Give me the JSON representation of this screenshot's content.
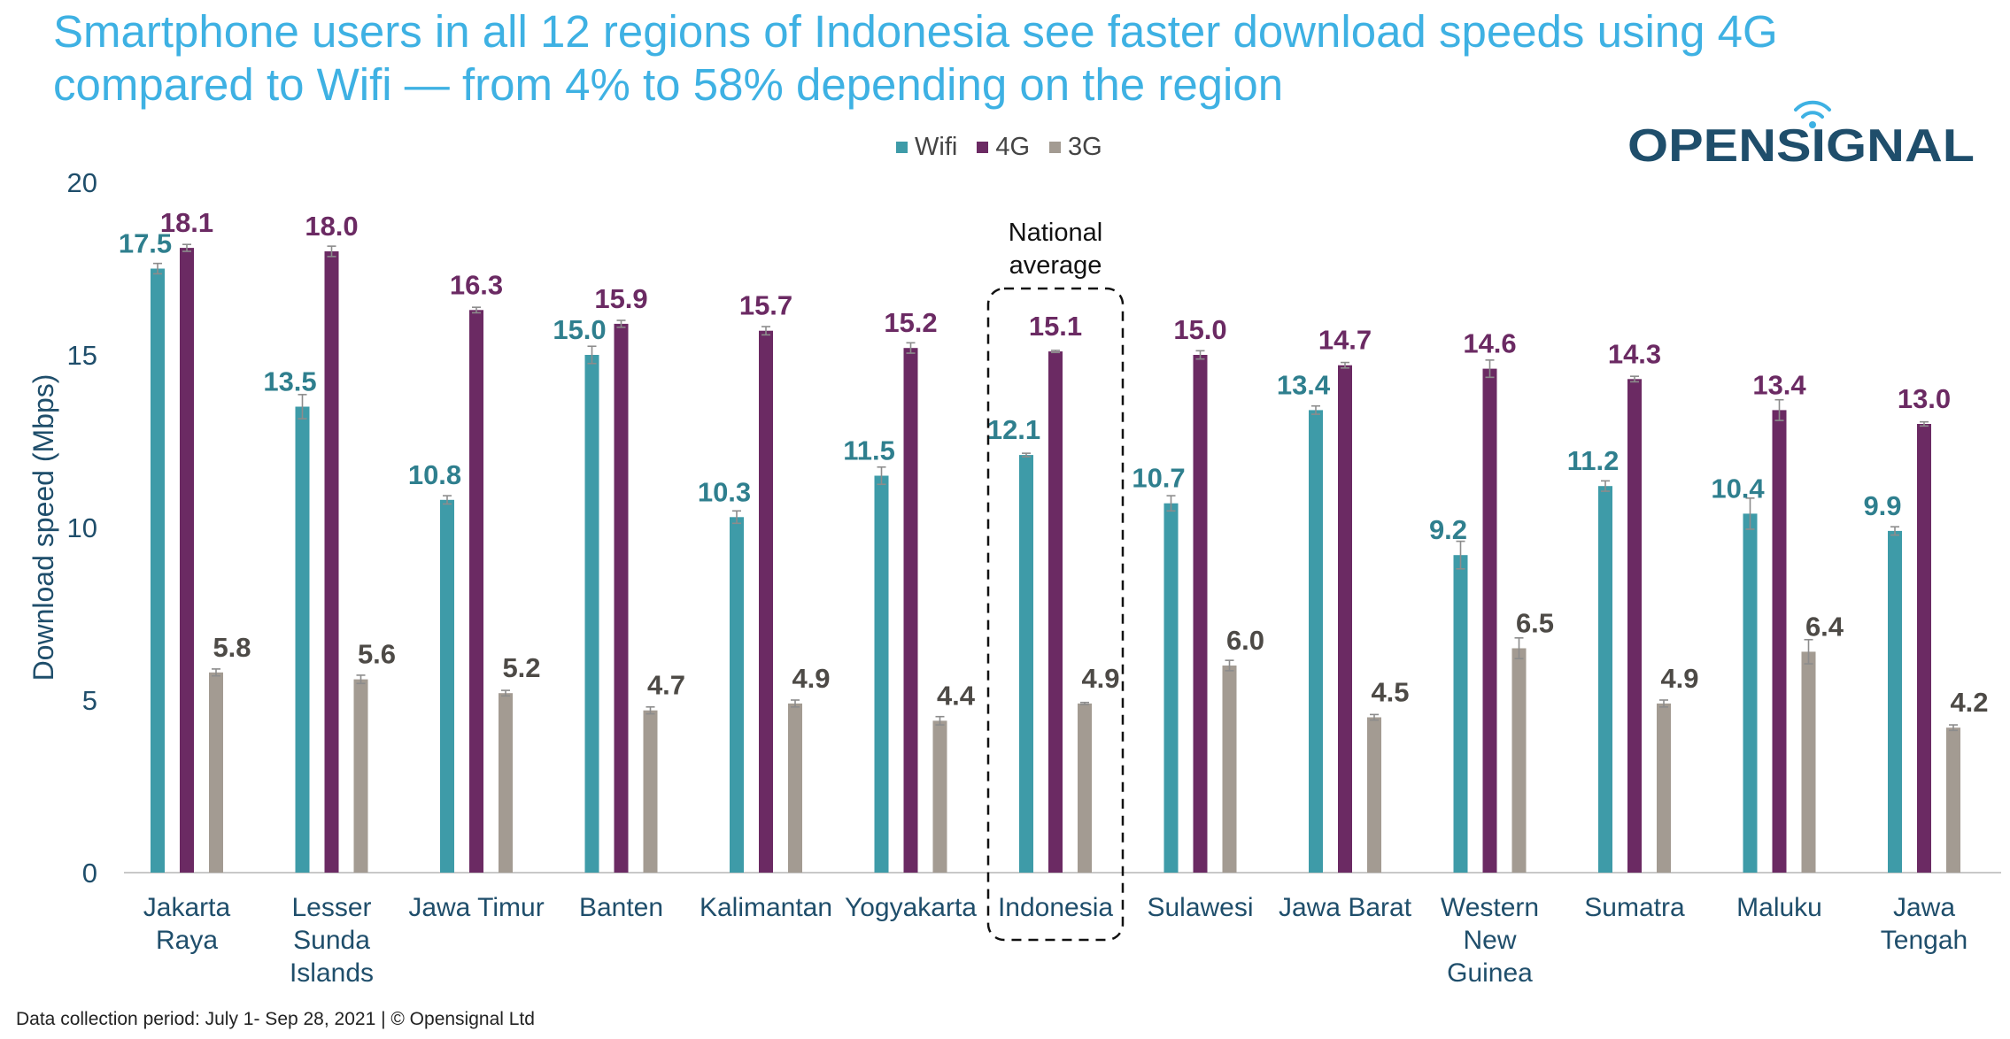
{
  "header": {
    "title": "Smartphone users in all 12 regions of Indonesia see faster download speeds using 4G compared to Wifi — from 4% to 58% depending on the region",
    "brand": "OPENSIGNAL"
  },
  "footer": {
    "note": "Data collection period: July 1- Sep 28, 2021 | © Opensignal Ltd"
  },
  "chart_data": {
    "type": "bar",
    "title": "Smartphone users in all 12 regions of Indonesia see faster download speeds using 4G compared to Wifi — from 4% to 58% depending on the region",
    "ylabel": "Download speed (Mbps)",
    "xlabel": "",
    "ylim": [
      0,
      20
    ],
    "yticks": [
      0,
      5,
      10,
      15,
      20
    ],
    "grid": false,
    "legend_position": "top",
    "categories": [
      "Jakarta Raya",
      "Lesser Sunda Islands",
      "Jawa Timur",
      "Banten",
      "Kalimantan",
      "Yogyakarta",
      "Indonesia",
      "Sulawesi",
      "Jawa Barat",
      "Western New Guinea",
      "Sumatra",
      "Maluku",
      "Jawa Tengah"
    ],
    "category_lines": [
      [
        "Jakarta",
        "Raya"
      ],
      [
        "Lesser",
        "Sunda",
        "Islands"
      ],
      [
        "Jawa Timur"
      ],
      [
        "Banten"
      ],
      [
        "Kalimantan"
      ],
      [
        "Yogyakarta"
      ],
      [
        "Indonesia"
      ],
      [
        "Sulawesi"
      ],
      [
        "Jawa Barat"
      ],
      [
        "Western",
        "New",
        "Guinea"
      ],
      [
        "Sumatra"
      ],
      [
        "Maluku"
      ],
      [
        "Jawa",
        "Tengah"
      ]
    ],
    "series": [
      {
        "name": "Wifi",
        "color": "#3e9ba8",
        "label_color": "#2f7f8e",
        "values": [
          17.5,
          13.5,
          10.8,
          15.0,
          10.3,
          11.5,
          12.1,
          10.7,
          13.4,
          9.2,
          11.2,
          10.4,
          9.9
        ],
        "labels": [
          "17.5",
          "13.5",
          "10.8",
          "15.0",
          "10.3",
          "11.5",
          "12.1",
          "10.7",
          "13.4",
          "9.2",
          "11.2",
          "10.4",
          "9.9"
        ]
      },
      {
        "name": "4G",
        "color": "#6b2a63",
        "label_color": "#6b2a63",
        "values": [
          18.1,
          18.0,
          16.3,
          15.9,
          15.7,
          15.2,
          15.1,
          15.0,
          14.7,
          14.6,
          14.3,
          13.4,
          13.0
        ],
        "labels": [
          "18.1",
          "18.0",
          "16.3",
          "15.9",
          "15.7",
          "15.2",
          "15.1",
          "15.0",
          "14.7",
          "14.6",
          "14.3",
          "13.4",
          "13.0"
        ]
      },
      {
        "name": "3G",
        "color": "#a39b92",
        "label_color": "#4d4a46",
        "values": [
          5.8,
          5.6,
          5.2,
          4.7,
          4.9,
          4.4,
          4.9,
          6.0,
          4.5,
          6.5,
          4.9,
          6.4,
          4.2
        ],
        "labels": [
          "5.8",
          "5.6",
          "5.2",
          "4.7",
          "4.9",
          "4.4",
          "4.9",
          "6.0",
          "4.5",
          "6.5",
          "4.9",
          "6.4",
          "4.2"
        ]
      }
    ],
    "error_margins": {
      "Wifi": [
        0.15,
        0.35,
        0.12,
        0.25,
        0.18,
        0.25,
        0.05,
        0.22,
        0.12,
        0.4,
        0.15,
        0.45,
        0.12
      ],
      "4G": [
        0.1,
        0.15,
        0.08,
        0.1,
        0.12,
        0.15,
        0.03,
        0.12,
        0.08,
        0.25,
        0.08,
        0.3,
        0.06
      ],
      "3G": [
        0.1,
        0.12,
        0.08,
        0.1,
        0.1,
        0.12,
        0.03,
        0.15,
        0.08,
        0.3,
        0.1,
        0.35,
        0.08
      ]
    },
    "highlight": {
      "category": "Indonesia",
      "annotation": "National average"
    }
  }
}
